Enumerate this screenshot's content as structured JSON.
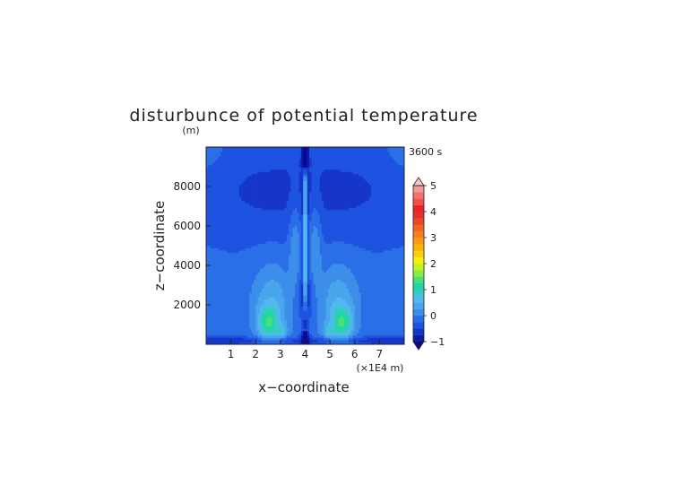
{
  "chart_data": {
    "type": "heatmap",
    "title": "disturbunce of potential temperature",
    "time_label": "3600 s",
    "xlabel": "x−coordinate",
    "ylabel": "z−coordinate",
    "y_unit_label": "(m)",
    "x_unit_label": "(×1E4 m)",
    "xlim": [
      0,
      8
    ],
    "ylim": [
      0,
      10000
    ],
    "x_ticks": [
      {
        "value": 1,
        "label": "1"
      },
      {
        "value": 2,
        "label": "2"
      },
      {
        "value": 3,
        "label": "3"
      },
      {
        "value": 4,
        "label": "4"
      },
      {
        "value": 5,
        "label": "5"
      },
      {
        "value": 6,
        "label": "6"
      },
      {
        "value": 7,
        "label": "7"
      }
    ],
    "y_ticks": [
      {
        "value": 2000,
        "label": "2000"
      },
      {
        "value": 4000,
        "label": "4000"
      },
      {
        "value": 6000,
        "label": "6000"
      },
      {
        "value": 8000,
        "label": "8000"
      }
    ],
    "colorbar": {
      "range": [
        -1,
        5
      ],
      "levels": [
        -1,
        -0.75,
        -0.5,
        -0.25,
        0,
        0.25,
        0.5,
        0.75,
        1,
        1.25,
        1.5,
        1.75,
        2,
        2.25,
        2.5,
        2.75,
        3,
        3.25,
        3.5,
        3.75,
        4,
        4.25,
        4.5,
        4.75,
        5
      ],
      "colors": [
        "#0a1ea8",
        "#1636c8",
        "#1e52e0",
        "#2a6ee8",
        "#3c8ee8",
        "#4aa6ec",
        "#52b8f0",
        "#3cc8c8",
        "#1ed6a4",
        "#46e07a",
        "#8cea46",
        "#c8f01e",
        "#f2f20e",
        "#f8d00c",
        "#f8b40c",
        "#f89a14",
        "#f87e1e",
        "#f06428",
        "#e84a28",
        "#e83030",
        "#ee2424",
        "#f05050",
        "#f47070",
        "#f49898"
      ],
      "over_color": "#f8c8c8",
      "under_color": "#0a0a90",
      "tick_labels": [
        {
          "value": 5,
          "label": "5"
        },
        {
          "value": 4,
          "label": "4"
        },
        {
          "value": 3,
          "label": "3"
        },
        {
          "value": 2,
          "label": "2"
        },
        {
          "value": 1,
          "label": "1"
        },
        {
          "value": 0,
          "label": "0"
        },
        {
          "value": -1,
          "label": "−1"
        }
      ]
    },
    "field_features": [
      {
        "kind": "background",
        "value": -0.2
      },
      {
        "kind": "gaussian",
        "x": 2.0,
        "z": 7800,
        "sx": 2.0,
        "sz": 1700,
        "amp": -0.3
      },
      {
        "kind": "gaussian",
        "x": 6.0,
        "z": 7800,
        "sx": 2.0,
        "sz": 1700,
        "amp": -0.3
      },
      {
        "kind": "gaussian",
        "x": 0.0,
        "z": 9500,
        "sx": 0.7,
        "sz": 700,
        "amp": 0.12
      },
      {
        "kind": "gaussian",
        "x": 8.0,
        "z": 9500,
        "sx": 0.7,
        "sz": 700,
        "amp": 0.12
      },
      {
        "kind": "gaussian",
        "x": 4.0,
        "z": 2500,
        "sx": 0.45,
        "sz": 1100,
        "amp": -0.45
      },
      {
        "kind": "gaussian",
        "x": 2.7,
        "z": 1900,
        "sx": 0.6,
        "sz": 1500,
        "amp": 0.7
      },
      {
        "kind": "gaussian",
        "x": 5.3,
        "z": 1900,
        "sx": 0.6,
        "sz": 1500,
        "amp": 0.7
      },
      {
        "kind": "gaussian",
        "x": 2.5,
        "z": 1100,
        "sx": 0.28,
        "sz": 550,
        "amp": 1.0
      },
      {
        "kind": "gaussian",
        "x": 5.5,
        "z": 1100,
        "sx": 0.28,
        "sz": 550,
        "amp": 1.0
      },
      {
        "kind": "gaussian",
        "x": 3.05,
        "z": 650,
        "sx": 0.15,
        "sz": 220,
        "amp": 0.6
      },
      {
        "kind": "gaussian",
        "x": 4.95,
        "z": 650,
        "sx": 0.15,
        "sz": 220,
        "amp": 0.6
      },
      {
        "kind": "gaussian",
        "x": 3.6,
        "z": 4800,
        "sx": 0.17,
        "sz": 1900,
        "amp": 0.5
      },
      {
        "kind": "gaussian",
        "x": 4.4,
        "z": 4800,
        "sx": 0.17,
        "sz": 1900,
        "amp": 0.5
      },
      {
        "kind": "band_z",
        "z": 180,
        "sz": 150,
        "amp": -0.45
      },
      {
        "kind": "core",
        "x": 4.0,
        "half_width": 0.13,
        "z_min": 1200,
        "z_max": 9000,
        "amp": 2.6
      },
      {
        "kind": "core_neg",
        "x": 4.0,
        "sigma": 0.09,
        "amp": -1.2
      }
    ]
  }
}
